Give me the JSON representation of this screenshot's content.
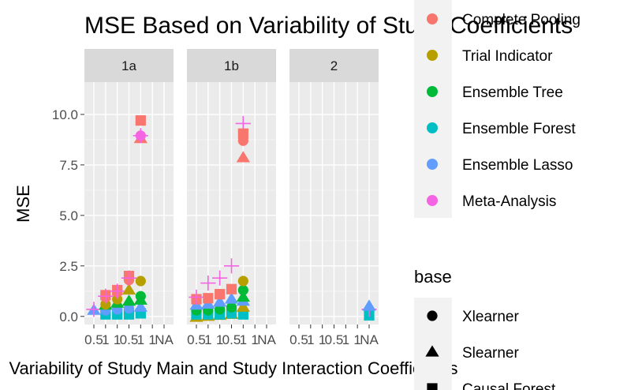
{
  "chart_data": {
    "type": "scatter",
    "title": "MSE Based on Variability of Study Coefficients",
    "xlabel": "Variability of Study Main and Study Interaction Coefficients",
    "ylabel": "MSE",
    "ylim": [
      -0.4,
      11.6
    ],
    "yticks": [
      0.0,
      2.5,
      5.0,
      7.5,
      10.0
    ],
    "ytick_labels": [
      "0.0",
      "2.5",
      "5.0",
      "7.5",
      "10.0"
    ],
    "xtick_labels": [
      "0.5",
      "1",
      "1",
      "0.5",
      "1",
      "1",
      "NA"
    ],
    "facets": [
      {
        "label": "1a",
        "show_ticks": true
      },
      {
        "label": "1b",
        "show_ticks": true
      },
      {
        "label": "2",
        "show_ticks": true
      }
    ],
    "grid": true,
    "legend_placement": "right",
    "color_legend": {
      "items": [
        {
          "label": "Complete Pooling",
          "color": "#F8766D"
        },
        {
          "label": "Trial Indicator",
          "color": "#B79F00"
        },
        {
          "label": "Ensemble Tree",
          "color": "#00BA38"
        },
        {
          "label": "Ensemble Forest",
          "color": "#00BFC4"
        },
        {
          "label": "Ensemble Lasso",
          "color": "#619CFF"
        },
        {
          "label": "Meta-Analysis",
          "color": "#F564E3"
        }
      ]
    },
    "shape_legend": {
      "title": "base",
      "items": [
        {
          "label": "Xlearner",
          "shape": "circle"
        },
        {
          "label": "Slearner",
          "shape": "triangle"
        },
        {
          "label": "Causal Forest",
          "shape": "square"
        }
      ]
    },
    "points": [
      {
        "facet": 0,
        "x": 1,
        "y": 0.3,
        "color": 4,
        "shape": "triangle"
      },
      {
        "facet": 0,
        "x": 1,
        "y": 0.35,
        "color": 5,
        "shape": "plus"
      },
      {
        "facet": 0,
        "x": 2,
        "y": 0.1,
        "color": 3,
        "shape": "square"
      },
      {
        "facet": 0,
        "x": 2,
        "y": 0.3,
        "color": 4,
        "shape": "circle"
      },
      {
        "facet": 0,
        "x": 2,
        "y": 0.55,
        "color": 2,
        "shape": "triangle"
      },
      {
        "facet": 0,
        "x": 2,
        "y": 0.6,
        "color": 1,
        "shape": "circle"
      },
      {
        "facet": 0,
        "x": 2,
        "y": 0.95,
        "color": 0,
        "shape": "circle"
      },
      {
        "facet": 0,
        "x": 2,
        "y": 1.05,
        "color": 0,
        "shape": "square"
      },
      {
        "facet": 0,
        "x": 2,
        "y": 1.0,
        "color": 5,
        "shape": "plus"
      },
      {
        "facet": 0,
        "x": 3,
        "y": 0.1,
        "color": 3,
        "shape": "square"
      },
      {
        "facet": 0,
        "x": 3,
        "y": 0.35,
        "color": 4,
        "shape": "circle"
      },
      {
        "facet": 0,
        "x": 3,
        "y": 0.65,
        "color": 2,
        "shape": "triangle"
      },
      {
        "facet": 0,
        "x": 3,
        "y": 0.85,
        "color": 1,
        "shape": "circle"
      },
      {
        "facet": 0,
        "x": 3,
        "y": 1.2,
        "color": 0,
        "shape": "circle"
      },
      {
        "facet": 0,
        "x": 3,
        "y": 1.3,
        "color": 0,
        "shape": "square"
      },
      {
        "facet": 0,
        "x": 3,
        "y": 1.25,
        "color": 5,
        "shape": "plus"
      },
      {
        "facet": 0,
        "x": 4,
        "y": 0.1,
        "color": 3,
        "shape": "square"
      },
      {
        "facet": 0,
        "x": 4,
        "y": 0.4,
        "color": 4,
        "shape": "circle"
      },
      {
        "facet": 0,
        "x": 4,
        "y": 0.75,
        "color": 2,
        "shape": "triangle"
      },
      {
        "facet": 0,
        "x": 4,
        "y": 1.3,
        "color": 1,
        "shape": "triangle"
      },
      {
        "facet": 0,
        "x": 4,
        "y": 1.8,
        "color": 0,
        "shape": "circle"
      },
      {
        "facet": 0,
        "x": 4,
        "y": 2.0,
        "color": 0,
        "shape": "square"
      },
      {
        "facet": 0,
        "x": 4,
        "y": 1.9,
        "color": 5,
        "shape": "plus"
      },
      {
        "facet": 0,
        "x": 5,
        "y": 0.15,
        "color": 3,
        "shape": "square"
      },
      {
        "facet": 0,
        "x": 5,
        "y": 0.45,
        "color": 4,
        "shape": "triangle"
      },
      {
        "facet": 0,
        "x": 5,
        "y": 0.8,
        "color": 2,
        "shape": "triangle"
      },
      {
        "facet": 0,
        "x": 5,
        "y": 1.0,
        "color": 2,
        "shape": "circle"
      },
      {
        "facet": 0,
        "x": 5,
        "y": 1.75,
        "color": 1,
        "shape": "circle"
      },
      {
        "facet": 0,
        "x": 5,
        "y": 9.7,
        "color": 0,
        "shape": "square"
      },
      {
        "facet": 0,
        "x": 5,
        "y": 8.8,
        "color": 0,
        "shape": "triangle"
      },
      {
        "facet": 0,
        "x": 5,
        "y": 8.95,
        "color": 5,
        "shape": "circle"
      },
      {
        "facet": 0,
        "x": 5,
        "y": 8.95,
        "color": 5,
        "shape": "plus"
      },
      {
        "facet": 1,
        "x": 1,
        "y": -0.05,
        "color": 1,
        "shape": "triangle"
      },
      {
        "facet": 1,
        "x": 1,
        "y": 0.1,
        "color": 3,
        "shape": "square"
      },
      {
        "facet": 1,
        "x": 1,
        "y": 0.3,
        "color": 2,
        "shape": "circle"
      },
      {
        "facet": 1,
        "x": 1,
        "y": 0.55,
        "color": 4,
        "shape": "triangle"
      },
      {
        "facet": 1,
        "x": 1,
        "y": 0.85,
        "color": 0,
        "shape": "square"
      },
      {
        "facet": 1,
        "x": 1,
        "y": 0.95,
        "color": 5,
        "shape": "plus"
      },
      {
        "facet": 1,
        "x": 2,
        "y": 0.0,
        "color": 1,
        "shape": "triangle"
      },
      {
        "facet": 1,
        "x": 2,
        "y": 0.1,
        "color": 3,
        "shape": "square"
      },
      {
        "facet": 1,
        "x": 2,
        "y": 0.3,
        "color": 2,
        "shape": "circle"
      },
      {
        "facet": 1,
        "x": 2,
        "y": 0.6,
        "color": 4,
        "shape": "triangle"
      },
      {
        "facet": 1,
        "x": 2,
        "y": 0.9,
        "color": 0,
        "shape": "square"
      },
      {
        "facet": 1,
        "x": 2,
        "y": 1.65,
        "color": 5,
        "shape": "plus"
      },
      {
        "facet": 1,
        "x": 3,
        "y": 0.05,
        "color": 1,
        "shape": "triangle"
      },
      {
        "facet": 1,
        "x": 3,
        "y": 0.1,
        "color": 3,
        "shape": "square"
      },
      {
        "facet": 1,
        "x": 3,
        "y": 0.35,
        "color": 2,
        "shape": "circle"
      },
      {
        "facet": 1,
        "x": 3,
        "y": 0.7,
        "color": 4,
        "shape": "triangle"
      },
      {
        "facet": 1,
        "x": 3,
        "y": 1.1,
        "color": 0,
        "shape": "square"
      },
      {
        "facet": 1,
        "x": 3,
        "y": 1.9,
        "color": 5,
        "shape": "plus"
      },
      {
        "facet": 1,
        "x": 4,
        "y": 0.1,
        "color": 1,
        "shape": "triangle"
      },
      {
        "facet": 1,
        "x": 4,
        "y": 0.15,
        "color": 3,
        "shape": "square"
      },
      {
        "facet": 1,
        "x": 4,
        "y": 0.45,
        "color": 2,
        "shape": "circle"
      },
      {
        "facet": 1,
        "x": 4,
        "y": 0.85,
        "color": 4,
        "shape": "triangle"
      },
      {
        "facet": 1,
        "x": 4,
        "y": 1.35,
        "color": 0,
        "shape": "square"
      },
      {
        "facet": 1,
        "x": 4,
        "y": 2.5,
        "color": 5,
        "shape": "plus"
      },
      {
        "facet": 1,
        "x": 5,
        "y": 0.1,
        "color": 3,
        "shape": "square"
      },
      {
        "facet": 1,
        "x": 5,
        "y": 0.45,
        "color": 1,
        "shape": "triangle"
      },
      {
        "facet": 1,
        "x": 5,
        "y": 0.75,
        "color": 4,
        "shape": "triangle"
      },
      {
        "facet": 1,
        "x": 5,
        "y": 0.95,
        "color": 2,
        "shape": "triangle"
      },
      {
        "facet": 1,
        "x": 5,
        "y": 1.3,
        "color": 2,
        "shape": "circle"
      },
      {
        "facet": 1,
        "x": 5,
        "y": 1.75,
        "color": 1,
        "shape": "circle"
      },
      {
        "facet": 1,
        "x": 5,
        "y": 9.55,
        "color": 5,
        "shape": "plus"
      },
      {
        "facet": 1,
        "x": 5,
        "y": 9.05,
        "color": 0,
        "shape": "square"
      },
      {
        "facet": 1,
        "x": 5,
        "y": 8.7,
        "color": 0,
        "shape": "circle"
      },
      {
        "facet": 1,
        "x": 5,
        "y": 7.85,
        "color": 0,
        "shape": "triangle"
      },
      {
        "facet": 2,
        "x": 7,
        "y": 0.05,
        "color": 3,
        "shape": "square"
      },
      {
        "facet": 2,
        "x": 7,
        "y": 0.35,
        "color": 5,
        "shape": "plus"
      },
      {
        "facet": 2,
        "x": 7,
        "y": 0.5,
        "color": 4,
        "shape": "triangle"
      }
    ]
  }
}
